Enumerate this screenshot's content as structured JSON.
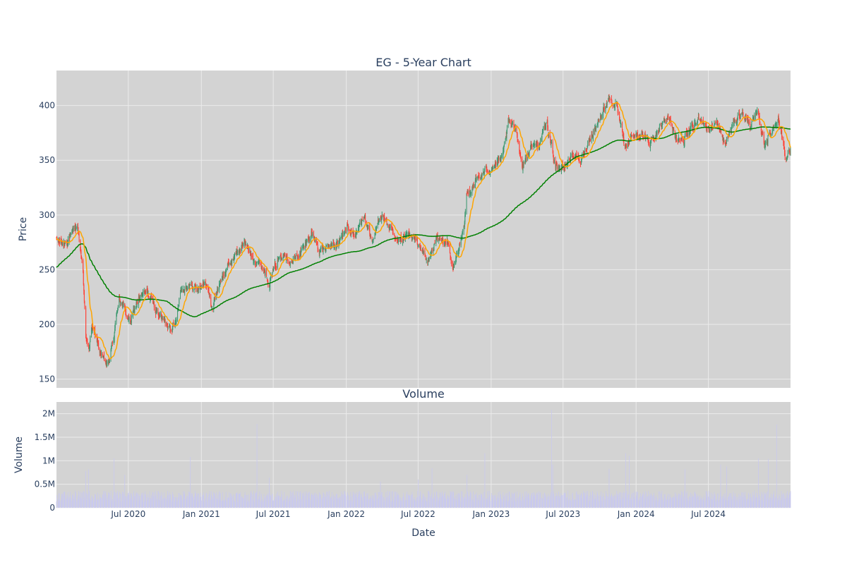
{
  "chart_data": [
    {
      "type": "candlestick",
      "title": "EG - 5-Year Chart",
      "ylabel": "Price",
      "ylim": [
        142,
        432
      ],
      "yticks": [
        150,
        200,
        250,
        300,
        350,
        400
      ],
      "grid": true,
      "background": "#d3d3d3",
      "colors": {
        "increasing": "#3d9970",
        "decreasing": "#ff4136",
        "ma_short": "#ffa500",
        "ma_long": "#008000"
      },
      "price_anchors": [
        [
          "2020-01-02",
          276
        ],
        [
          "2020-01-20",
          274
        ],
        [
          "2020-02-10",
          282
        ],
        [
          "2020-02-24",
          291
        ],
        [
          "2020-03-02",
          270
        ],
        [
          "2020-03-09",
          250
        ],
        [
          "2020-03-12",
          222
        ],
        [
          "2020-03-16",
          186
        ],
        [
          "2020-03-23",
          176
        ],
        [
          "2020-03-30",
          198
        ],
        [
          "2020-04-13",
          185
        ],
        [
          "2020-04-27",
          168
        ],
        [
          "2020-05-11",
          162
        ],
        [
          "2020-05-26",
          190
        ],
        [
          "2020-06-08",
          226
        ],
        [
          "2020-06-22",
          212
        ],
        [
          "2020-07-06",
          202
        ],
        [
          "2020-07-27",
          224
        ],
        [
          "2020-08-17",
          230
        ],
        [
          "2020-09-07",
          214
        ],
        [
          "2020-10-05",
          200
        ],
        [
          "2020-10-26",
          198
        ],
        [
          "2020-11-09",
          232
        ],
        [
          "2020-11-30",
          236
        ],
        [
          "2020-12-21",
          232
        ],
        [
          "2021-01-11",
          238
        ],
        [
          "2021-01-29",
          216
        ],
        [
          "2021-02-15",
          238
        ],
        [
          "2021-03-08",
          252
        ],
        [
          "2021-04-01",
          266
        ],
        [
          "2021-04-20",
          274
        ],
        [
          "2021-05-10",
          262
        ],
        [
          "2021-06-01",
          254
        ],
        [
          "2021-06-21",
          240
        ],
        [
          "2021-07-12",
          258
        ],
        [
          "2021-07-26",
          268
        ],
        [
          "2021-08-16",
          256
        ],
        [
          "2021-09-13",
          268
        ],
        [
          "2021-10-05",
          284
        ],
        [
          "2021-10-25",
          268
        ],
        [
          "2021-11-22",
          270
        ],
        [
          "2021-12-13",
          274
        ],
        [
          "2022-01-03",
          290
        ],
        [
          "2022-01-24",
          280
        ],
        [
          "2022-02-14",
          302
        ],
        [
          "2022-03-07",
          272
        ],
        [
          "2022-03-28",
          302
        ],
        [
          "2022-04-18",
          290
        ],
        [
          "2022-05-09",
          272
        ],
        [
          "2022-06-06",
          282
        ],
        [
          "2022-07-05",
          272
        ],
        [
          "2022-07-25",
          256
        ],
        [
          "2022-08-15",
          278
        ],
        [
          "2022-09-12",
          276
        ],
        [
          "2022-09-26",
          250
        ],
        [
          "2022-10-10",
          268
        ],
        [
          "2022-10-24",
          284
        ],
        [
          "2022-10-31",
          318
        ],
        [
          "2022-11-21",
          330
        ],
        [
          "2022-12-12",
          338
        ],
        [
          "2023-01-02",
          344
        ],
        [
          "2023-01-30",
          352
        ],
        [
          "2023-02-13",
          384
        ],
        [
          "2023-03-06",
          378
        ],
        [
          "2023-03-20",
          344
        ],
        [
          "2023-04-10",
          362
        ],
        [
          "2023-05-01",
          366
        ],
        [
          "2023-05-22",
          382
        ],
        [
          "2023-06-12",
          346
        ],
        [
          "2023-07-03",
          342
        ],
        [
          "2023-07-24",
          356
        ],
        [
          "2023-08-14",
          348
        ],
        [
          "2023-09-11",
          374
        ],
        [
          "2023-10-02",
          388
        ],
        [
          "2023-10-23",
          408
        ],
        [
          "2023-11-13",
          398
        ],
        [
          "2023-12-04",
          360
        ],
        [
          "2023-12-25",
          374
        ],
        [
          "2024-01-15",
          372
        ],
        [
          "2024-02-05",
          366
        ],
        [
          "2024-02-26",
          378
        ],
        [
          "2024-03-18",
          392
        ],
        [
          "2024-04-08",
          372
        ],
        [
          "2024-04-29",
          368
        ],
        [
          "2024-05-20",
          378
        ],
        [
          "2024-06-10",
          390
        ],
        [
          "2024-07-01",
          378
        ],
        [
          "2024-07-22",
          384
        ],
        [
          "2024-08-12",
          364
        ],
        [
          "2024-09-02",
          384
        ],
        [
          "2024-09-23",
          394
        ],
        [
          "2024-10-14",
          382
        ],
        [
          "2024-11-04",
          392
        ],
        [
          "2024-11-18",
          366
        ],
        [
          "2024-12-02",
          372
        ],
        [
          "2024-12-23",
          390
        ],
        [
          "2025-01-06",
          366
        ],
        [
          "2025-01-13",
          352
        ],
        [
          "2025-01-24",
          358
        ]
      ],
      "moving_averages": [
        {
          "name": "short",
          "window": 20,
          "color": "#ffa500"
        },
        {
          "name": "long",
          "window": 200,
          "color": "#008000"
        }
      ]
    },
    {
      "type": "bar",
      "title": "Volume",
      "xlabel": "Date",
      "ylabel": "Volume",
      "ylim": [
        0,
        2250000
      ],
      "yticks": [
        0,
        500000,
        1000000,
        1500000,
        2000000
      ],
      "ytick_labels": [
        "0",
        "0.5M",
        "1M",
        "1.5M",
        "2M"
      ],
      "grid": true,
      "background": "#d3d3d3",
      "bar_color": "#c9c9ee",
      "base_volume": 260000,
      "spikes": [
        [
          "2020-03-16",
          780000
        ],
        [
          "2020-03-23",
          820000
        ],
        [
          "2020-05-26",
          1050000
        ],
        [
          "2020-06-22",
          700000
        ],
        [
          "2020-12-04",
          1080000
        ],
        [
          "2021-05-21",
          1780000
        ],
        [
          "2021-06-21",
          640000
        ],
        [
          "2022-03-28",
          560000
        ],
        [
          "2022-07-01",
          600000
        ],
        [
          "2022-08-05",
          840000
        ],
        [
          "2022-11-01",
          700000
        ],
        [
          "2022-12-16",
          1160000
        ],
        [
          "2023-06-02",
          2080000
        ],
        [
          "2023-06-05",
          920000
        ],
        [
          "2023-10-25",
          830000
        ],
        [
          "2023-12-06",
          1160000
        ],
        [
          "2023-12-15",
          1100000
        ],
        [
          "2024-05-03",
          820000
        ],
        [
          "2024-08-01",
          920000
        ],
        [
          "2024-08-16",
          880000
        ],
        [
          "2024-11-04",
          1050000
        ],
        [
          "2024-11-29",
          1040000
        ],
        [
          "2024-12-20",
          1770000
        ]
      ]
    }
  ],
  "x_axis": {
    "start": "2020-01-02",
    "end": "2025-01-24",
    "tick_dates": [
      "2020-07-01",
      "2021-01-01",
      "2021-07-01",
      "2022-01-01",
      "2022-07-01",
      "2023-01-01",
      "2023-07-01",
      "2024-01-01",
      "2024-07-01"
    ],
    "tick_labels": [
      "Jul 2020",
      "Jan 2021",
      "Jul 2021",
      "Jan 2022",
      "Jul 2022",
      "Jan 2023",
      "Jul 2023",
      "Jan 2024",
      "Jul 2024"
    ]
  },
  "text_color": "#2a3f5f",
  "grid_color": "#ebebeb"
}
